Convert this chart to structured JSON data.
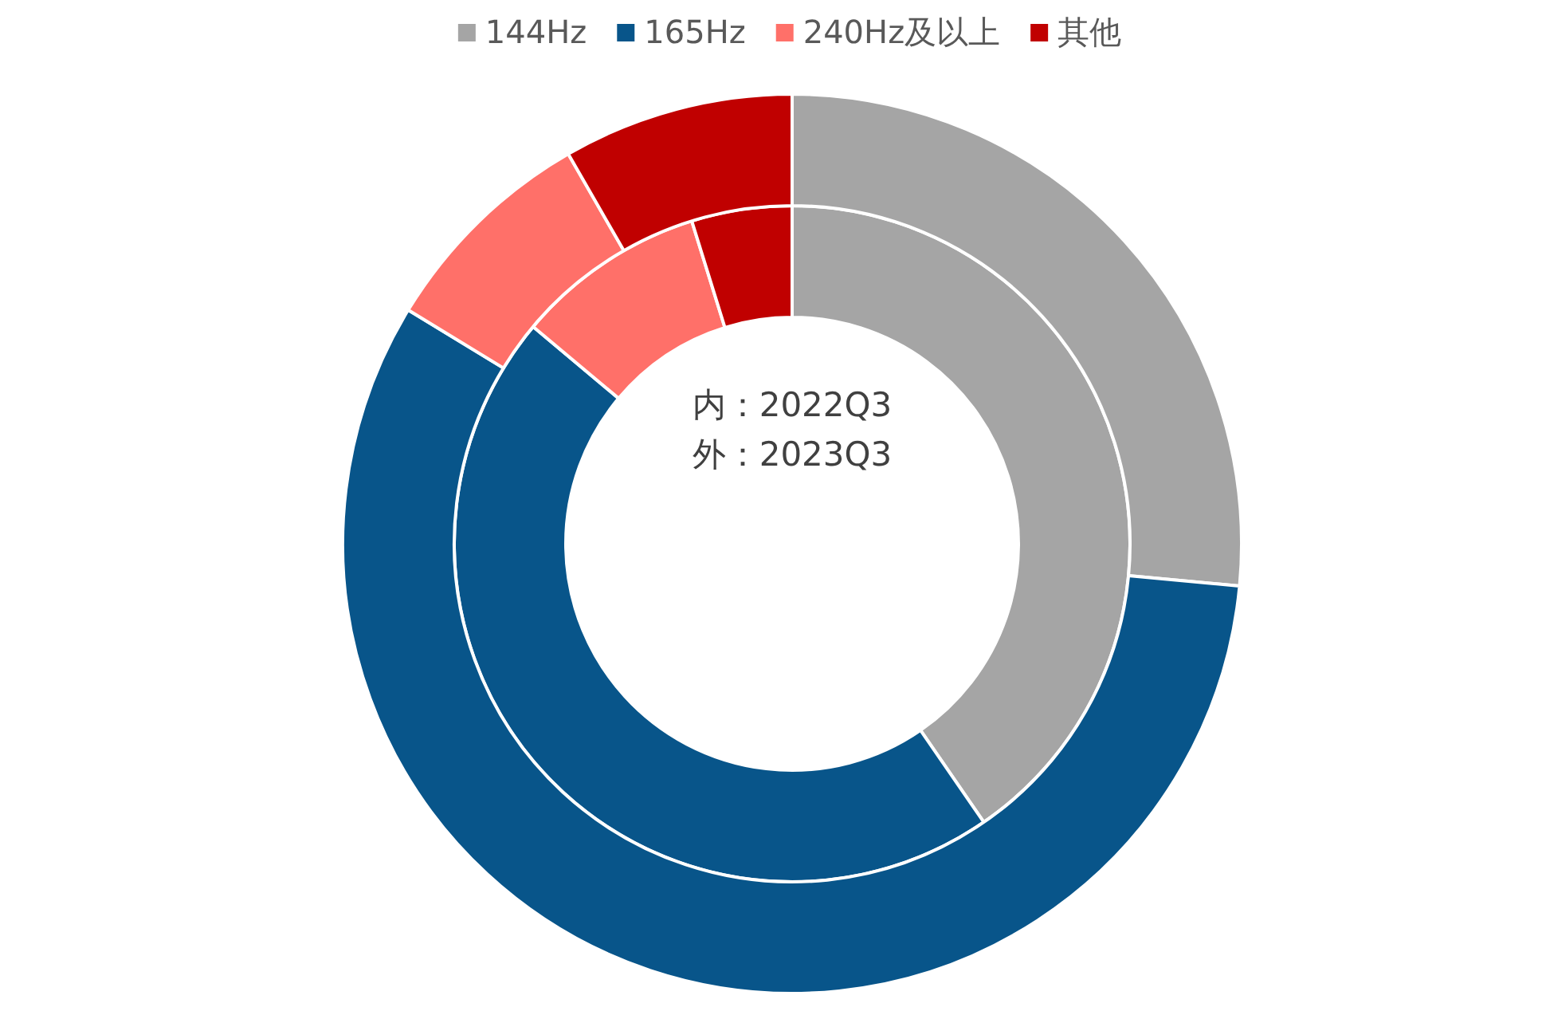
{
  "chart_data": {
    "type": "donut",
    "categories": [
      "144Hz",
      "165Hz",
      "240Hz及以上",
      "其他"
    ],
    "colors": [
      "#a5a5a5",
      "#08558a",
      "#ff7069",
      "#c00000"
    ],
    "series": [
      {
        "values": [
          40.4,
          45.7,
          9.1,
          4.8
        ]
      },
      {
        "values": [
          26.5,
          57.2,
          8.0,
          8.3
        ]
      }
    ],
    "annotations": [
      "内：2022Q3",
      "外：2023Q3"
    ],
    "legend": "top"
  }
}
